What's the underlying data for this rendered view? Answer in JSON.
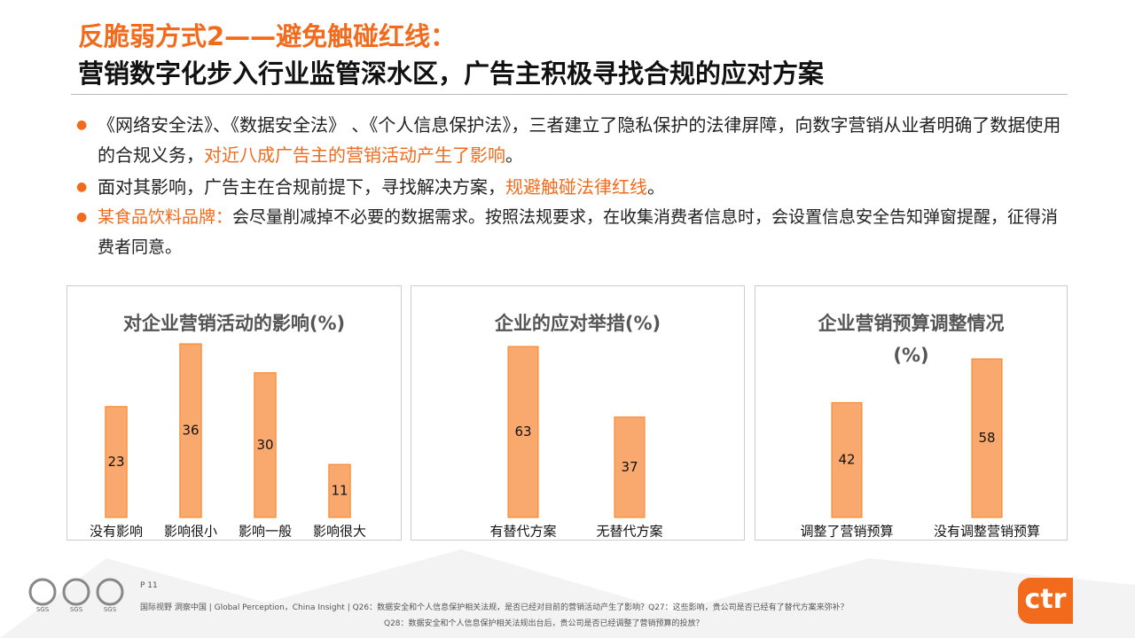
{
  "header": {
    "title": "反脆弱方式2——避免触碰红线：",
    "subtitle": "营销数字化步入行业监管深水区，广告主积极寻找合规的应对方案"
  },
  "bullets": [
    {
      "parts": [
        "《网络安全法》、《数据安全法》 、《个人信息保护法》，三者建立了隐私保护的法律屏障，向数字营销从业者明确了数据使用的合规义务，",
        "对近八成广告主的营销活动产生了影响",
        "。"
      ]
    },
    {
      "parts": [
        "面对其影响，广告主在合规前提下，寻找解决方案，",
        "规避触碰法律红线",
        "。"
      ]
    },
    {
      "parts": [
        "某食品饮料品牌：",
        "会尽量削减掉不必要的数据需求。按照法规要求，在收集消费者信息时，会设置信息安全告知弹窗提醒，征得消费者同意。"
      ]
    }
  ],
  "chart_data": [
    {
      "type": "bar",
      "title": "对企业营销活动的影响(%)",
      "categories": [
        "没有影响",
        "影响很小",
        "影响一般",
        "影响很大"
      ],
      "values": [
        23,
        36,
        30,
        11
      ],
      "color": "#f9a86e"
    },
    {
      "type": "bar",
      "title": "企业的应对举措(%)",
      "categories": [
        "有替代方案",
        "无替代方案"
      ],
      "values": [
        63,
        37
      ],
      "color": "#f9a86e"
    },
    {
      "type": "bar",
      "title": "企业营销预算调整情况(%)",
      "categories": [
        "调整了营销预算",
        "没有调整营销预算"
      ],
      "values": [
        42,
        58
      ],
      "color": "#f9a86e"
    }
  ],
  "footer": {
    "page": "P 11",
    "certs": [
      "SGS",
      "SGS",
      "SGS"
    ],
    "source_line1": "国际视野  洞察中国 | Global Perception，China Insight  |  Q26：数据安全和个人信息保护相关法规，是否已经对目前的营销活动产生了影响？Q27：这些影响，贵公司是否已经有了替代方案来弥补？",
    "source_line2": "Q28：数据安全和个人信息保护相关法规出台后，贵公司是否已经调整了营销预算的投放？",
    "logo": "ctr"
  }
}
